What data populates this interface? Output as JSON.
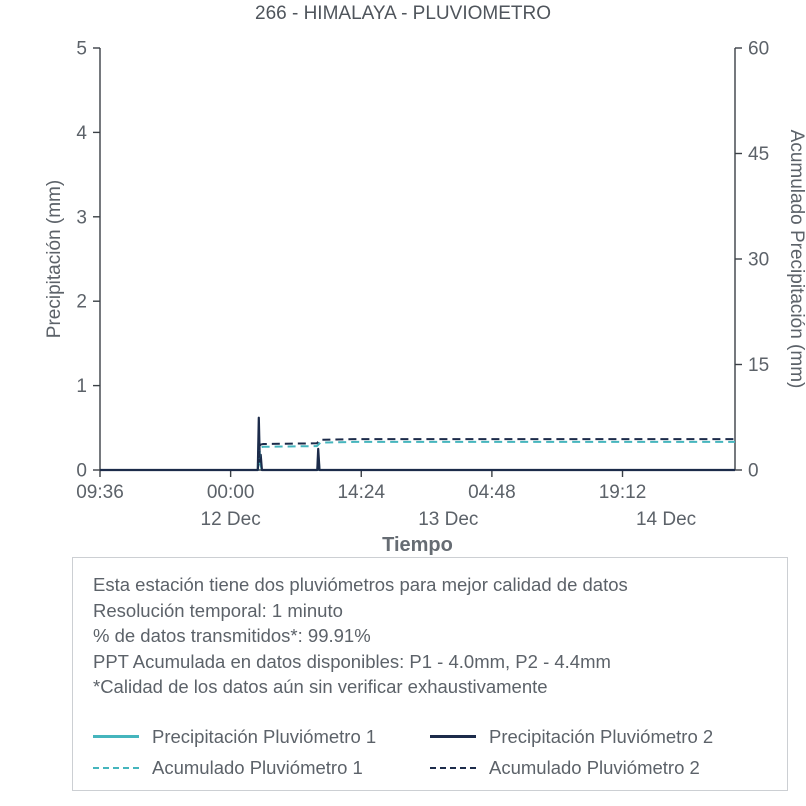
{
  "page_title": "266 - HIMALAYA - PLUVIOMETRO",
  "colors": {
    "teal": "#45b5bd",
    "navy": "#1c2b4a",
    "text_gray": "#5c6269",
    "axis_line": "#3b4046",
    "box_border": "#cccfd3"
  },
  "chart_data": {
    "type": "line",
    "title": "266 - HIMALAYA - PLUVIOMETRO",
    "xlabel": "Tiempo",
    "ylabel_left": "Precipitación (mm)",
    "ylabel_right": "Acumulado Precipitación (mm)",
    "x_axis_note": "hours from chart start at 09:36 (11 Dec); ticks every 14.4 h",
    "x_range": [
      0,
      70
    ],
    "ylim_left": [
      0,
      5
    ],
    "ylim_right": [
      0,
      60
    ],
    "yticks_left": [
      0,
      1,
      2,
      3,
      4,
      5
    ],
    "yticks_right": [
      0,
      15,
      30,
      45,
      60
    ],
    "xticks": [
      {
        "t": 0,
        "label": "09:36"
      },
      {
        "t": 14.4,
        "label": "00:00"
      },
      {
        "t": 28.8,
        "label": "14:24"
      },
      {
        "t": 43.2,
        "label": "04:48"
      },
      {
        "t": 57.6,
        "label": "19:12"
      }
    ],
    "date_labels": [
      {
        "t": 14.4,
        "label": "12 Dec"
      },
      {
        "t": 38.4,
        "label": "13 Dec"
      },
      {
        "t": 62.4,
        "label": "14 Dec"
      }
    ],
    "grid": false,
    "legend_position": "below-chart-in-info-box",
    "series": [
      {
        "name": "Precipitación Pluviómetro 1",
        "axis": "left",
        "style": "solid",
        "color_key": "teal",
        "width": 2,
        "points": [
          [
            0,
            0
          ],
          [
            17.4,
            0
          ],
          [
            17.5,
            0.5
          ],
          [
            17.6,
            0.1
          ],
          [
            17.85,
            0
          ],
          [
            23.95,
            0
          ],
          [
            24.05,
            0.2
          ],
          [
            24.2,
            0
          ],
          [
            70,
            0
          ]
        ]
      },
      {
        "name": "Precipitación Pluviómetro 2",
        "axis": "left",
        "style": "solid",
        "color_key": "navy",
        "width": 2.2,
        "points": [
          [
            0,
            0
          ],
          [
            17.4,
            0
          ],
          [
            17.5,
            0.62
          ],
          [
            17.62,
            0.1
          ],
          [
            17.72,
            0.18
          ],
          [
            17.85,
            0
          ],
          [
            23.95,
            0
          ],
          [
            24.05,
            0.25
          ],
          [
            24.2,
            0
          ],
          [
            70,
            0
          ]
        ]
      },
      {
        "name": "Acumulado Pluviómetro 1",
        "axis": "right",
        "style": "dashed",
        "color_key": "teal",
        "width": 2,
        "points": [
          [
            0,
            0
          ],
          [
            17.4,
            0
          ],
          [
            17.65,
            3.2
          ],
          [
            18,
            3.3
          ],
          [
            23.9,
            3.4
          ],
          [
            24.3,
            3.9
          ],
          [
            28,
            4.0
          ],
          [
            70,
            4.0
          ]
        ]
      },
      {
        "name": "Acumulado Pluviómetro 2",
        "axis": "right",
        "style": "dashed",
        "color_key": "navy",
        "width": 2,
        "points": [
          [
            0,
            0
          ],
          [
            17.4,
            0
          ],
          [
            17.65,
            3.6
          ],
          [
            18,
            3.7
          ],
          [
            23.9,
            3.8
          ],
          [
            24.3,
            4.3
          ],
          [
            28,
            4.4
          ],
          [
            70,
            4.4
          ]
        ]
      }
    ]
  },
  "info_box": {
    "lines": [
      "Esta estación tiene dos pluviómetros para mejor calidad de datos",
      "Resolución temporal: 1 minuto",
      "% de datos transmitidos*: 99.91%",
      "PPT Acumulada en datos disponibles: P1 - 4.0mm, P2 - 4.4mm",
      "*Calidad de los datos aún sin verificar exhaustivamente"
    ],
    "legend": [
      {
        "label": "Precipitación Pluviómetro 1",
        "style": "solid",
        "color_key": "teal"
      },
      {
        "label": "Precipitación Pluviómetro 2",
        "style": "solid",
        "color_key": "navy"
      },
      {
        "label": "Acumulado Pluviómetro 1",
        "style": "dashed",
        "color_key": "teal"
      },
      {
        "label": "Acumulado Pluviómetro 2",
        "style": "dashed",
        "color_key": "navy"
      }
    ]
  }
}
